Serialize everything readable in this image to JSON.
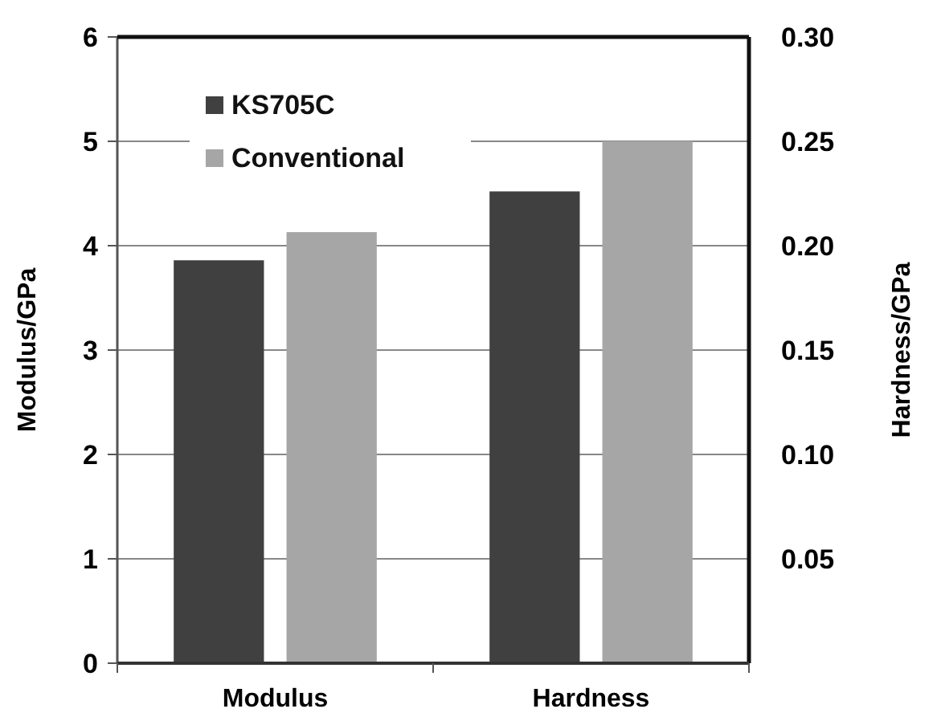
{
  "chart_data": {
    "type": "bar",
    "ylabel": "Modulus/GPa",
    "y2label": "Hardness/GPa",
    "categories": [
      "Modulus",
      "Hardness"
    ],
    "series": [
      {
        "name": "KS705C",
        "color": "#404040",
        "values": [
          3.86,
          null
        ]
      },
      {
        "name": "Conventional",
        "color": "#a6a6a6",
        "values": [
          4.13,
          null
        ]
      },
      {
        "color": "#404040",
        "values": [
          null,
          0.226
        ],
        "axis": "y2"
      },
      {
        "color": "#a6a6a6",
        "values": [
          null,
          0.25
        ],
        "axis": "y2"
      }
    ],
    "ylim": [
      0,
      6
    ],
    "yticks": [
      0,
      1,
      2,
      3,
      4,
      5,
      6
    ],
    "y2lim": [
      0,
      0.3
    ],
    "y2ticks": [
      {
        "value": 0.05,
        "label": "0.05"
      },
      {
        "value": 0.1,
        "label": "0.10"
      },
      {
        "value": 0.15,
        "label": "0.15"
      },
      {
        "value": 0.2,
        "label": "0.20"
      },
      {
        "value": 0.25,
        "label": "0.25"
      },
      {
        "value": 0.3,
        "label": "0.30"
      }
    ],
    "grid": "y",
    "legend": "top left"
  }
}
